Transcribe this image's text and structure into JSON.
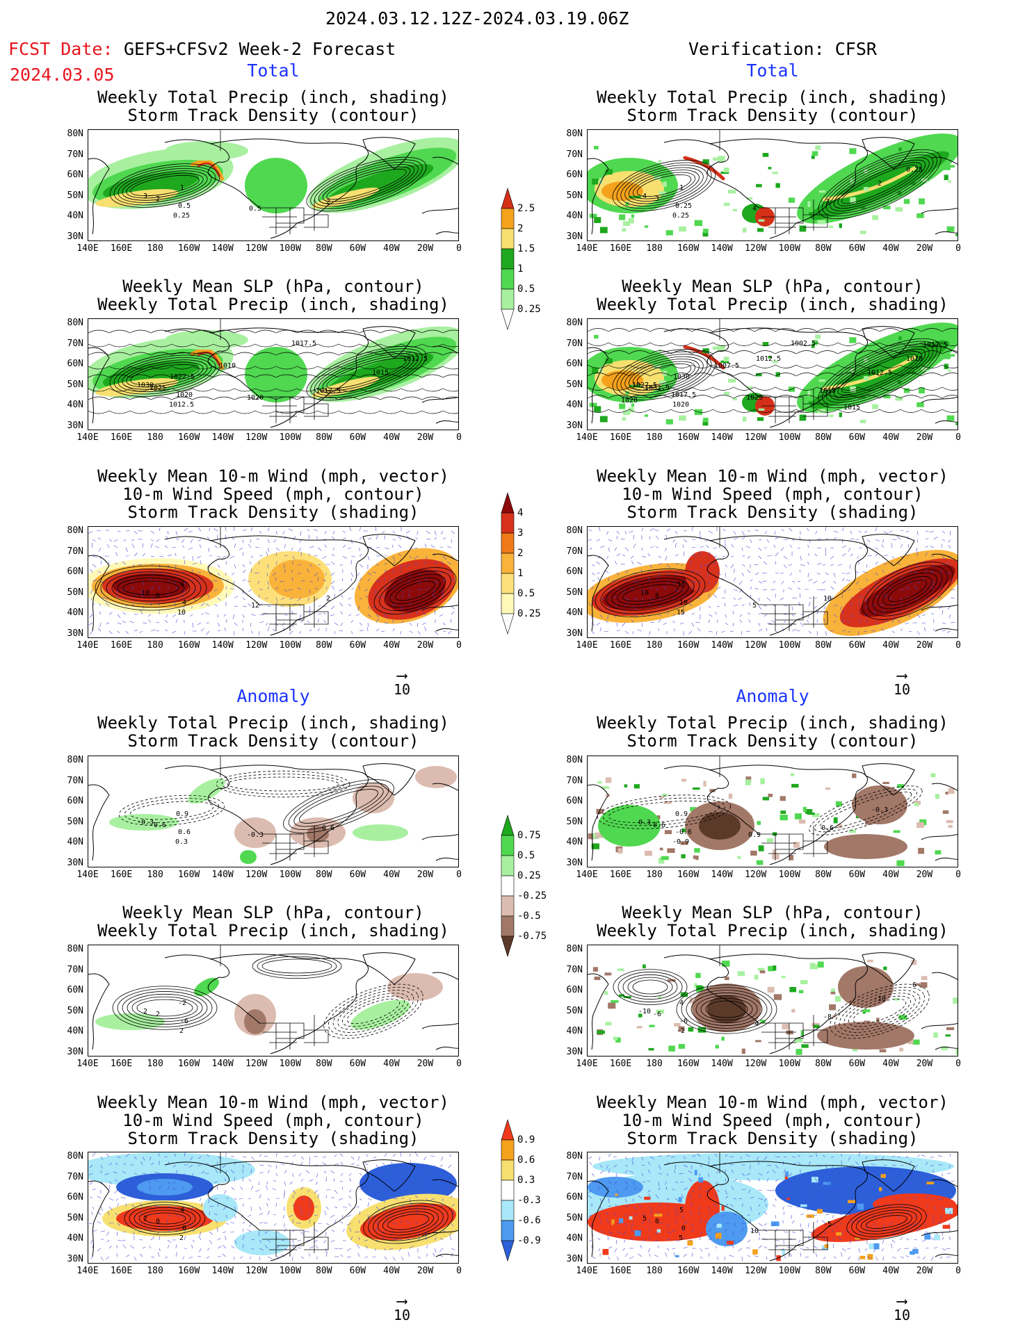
{
  "header": {
    "period": "2024.03.12.12Z-2024.03.19.06Z",
    "fcst_label": "FCST Date:",
    "fcst_model": "GEFS+CFSv2 Week-2 Forecast",
    "fcst_date": "2024.03.05",
    "verification": "Verification: CFSR"
  },
  "colors": {
    "red_text": "#e8141e",
    "section_blue": "#1a33ff",
    "precip": [
      "#a8f0a0",
      "#50d850",
      "#1ea81e",
      "#f8e070",
      "#f4a11c",
      "#d43018"
    ],
    "storm_total": [
      "#fff9b8",
      "#fde07a",
      "#f9b23a",
      "#f07a1a",
      "#d8321c",
      "#8c0a0a"
    ],
    "precip_anom": [
      "#5c3a2a",
      "#a27868",
      "#dcbcb0",
      "#ffffff",
      "#a8f0a0",
      "#50d850",
      "#1ea81e"
    ],
    "storm_anom": [
      "#2c5fd8",
      "#4d9af0",
      "#a8e8f8",
      "#ffffff",
      "#f8e070",
      "#f4a11c",
      "#f03a1c"
    ]
  },
  "sections": {
    "total": "Total",
    "anomaly": "Anomaly"
  },
  "axes": {
    "lat": [
      "80N",
      "70N",
      "60N",
      "50N",
      "40N",
      "30N"
    ],
    "lon": [
      "140E",
      "160E",
      "180",
      "160W",
      "140W",
      "120W",
      "100W",
      "80W",
      "60W",
      "40W",
      "20W",
      "0"
    ]
  },
  "titles": {
    "precip_storm": [
      "Weekly Total Precip (inch, shading)",
      "Storm Track Density (contour)"
    ],
    "slp_precip": [
      "Weekly Mean SLP (hPa, contour)",
      "Weekly Total Precip (inch, shading)"
    ],
    "wind_storm": [
      "Weekly Mean 10-m Wind (mph, vector)",
      "10-m Wind Speed (mph, contour)",
      "Storm Track Density (shading)"
    ]
  },
  "reference_vector": "10",
  "colorbars": {
    "precip_total": [
      "0.25",
      "0.5",
      "1",
      "1.5",
      "2",
      "2.5"
    ],
    "storm_total": [
      "0.25",
      "0.5",
      "1",
      "2",
      "3",
      "4"
    ],
    "precip_anom": [
      "-0.75",
      "-0.5",
      "-0.25",
      "0.25",
      "0.5",
      "0.75"
    ],
    "storm_anom": [
      "-0.9",
      "-0.6",
      "-0.3",
      "0.3",
      "0.6",
      "0.9"
    ]
  },
  "contour_labels": {
    "fc_total_precip": [
      "3",
      "2",
      "1",
      "0.5",
      "0.25",
      "0.5",
      "2"
    ],
    "ver_total_precip": [
      "4",
      "3",
      "1",
      "0.25",
      "0.25",
      "4",
      "3",
      "2",
      "0.25"
    ],
    "fc_total_slp": [
      "1030",
      "1025",
      "1022.5",
      "1020",
      "1012.5",
      "1020",
      "1017.5",
      "1015",
      "1012.5",
      "1017.5",
      "1010"
    ],
    "ver_total_slp": [
      "1027.5",
      "1032.5",
      "1030",
      "1017.5",
      "1020",
      "1025",
      "1015",
      "1012.5",
      "1010",
      "1002.5",
      "1007.5",
      "1012.5",
      "1015",
      "1017.5",
      "1020"
    ],
    "fc_total_wind": [
      "10",
      "8",
      "6",
      "4",
      "10",
      "12",
      "2"
    ],
    "ver_total_wind": [
      "10",
      "8",
      "15",
      "10",
      "15",
      "5",
      "10"
    ],
    "fc_anom_precip": [
      "-0.3",
      "-0.6",
      "0.9",
      "0.6",
      "0.3",
      "-0.3",
      "0.6"
    ],
    "ver_anom_precip": [
      "0.3",
      "-0.6",
      "0.9",
      "-0.6",
      "-0.9",
      "0.9",
      "0.6",
      "-0.3"
    ],
    "fc_anom_slp": [
      "2",
      "2",
      "-2",
      "-6",
      "2"
    ],
    "ver_anom_slp": [
      "-10",
      "-6",
      "4",
      "-6",
      "-2",
      "-4",
      "-8",
      "-10",
      "6"
    ],
    "fc_anom_wind": [
      "2",
      "0",
      "4",
      "0",
      "2"
    ],
    "ver_anom_wind": [
      "5",
      "0",
      "5",
      "0",
      "5",
      "10",
      "-5"
    ]
  }
}
